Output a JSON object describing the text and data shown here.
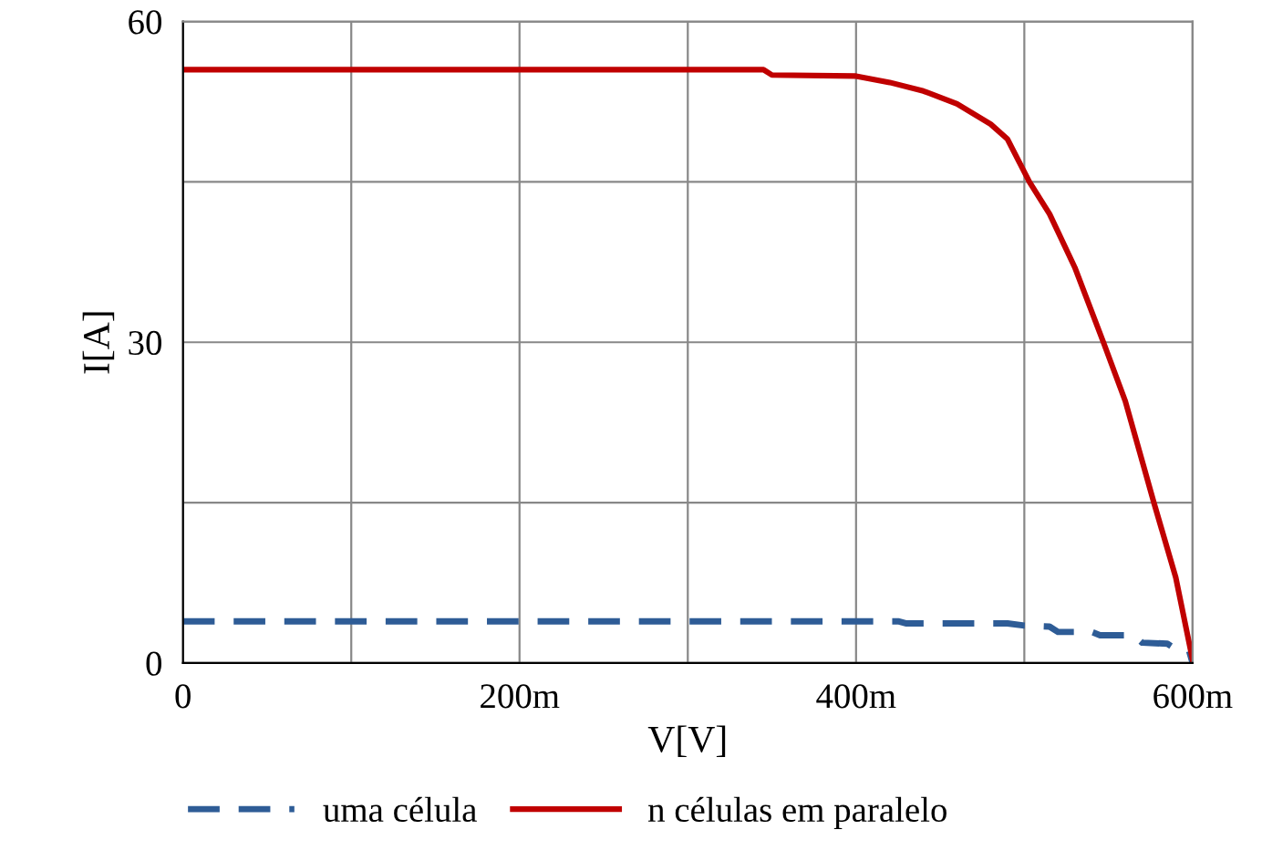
{
  "chart_data": {
    "type": "line",
    "xlabel": "V[V]",
    "ylabel": "I[A]",
    "xlim": [
      0,
      600
    ],
    "ylim": [
      0,
      60
    ],
    "xticks": [
      0,
      {
        "value": 100,
        "label": null
      },
      {
        "value": 200,
        "label": "200m"
      },
      {
        "value": 300,
        "label": null
      },
      {
        "value": 400,
        "label": "400m"
      },
      {
        "value": 500,
        "label": null
      },
      {
        "value": 600,
        "label": "600m"
      }
    ],
    "yticks": [
      0,
      {
        "value": 15,
        "label": null
      },
      30,
      {
        "value": 45,
        "label": null
      },
      60
    ],
    "grid": true,
    "legend": "bottom",
    "series": [
      {
        "name": "uma célula",
        "color": "#2e5c96",
        "line_style": "dashed",
        "x": [
          0,
          425,
          430,
          490,
          500,
          515,
          520,
          540,
          545,
          565,
          570,
          585,
          590,
          598,
          600
        ],
        "values": [
          3.9,
          3.9,
          3.7,
          3.7,
          3.5,
          3.4,
          2.9,
          2.9,
          2.6,
          2.6,
          1.9,
          1.8,
          1.3,
          1.1,
          0
        ]
      },
      {
        "name": "n células em paralelo",
        "color": "#c00000",
        "line_style": "solid",
        "x": [
          0,
          345,
          350,
          400,
          420,
          440,
          460,
          480,
          490,
          503,
          515,
          530,
          547,
          560,
          577,
          590,
          600
        ],
        "values": [
          55.5,
          55.5,
          55.0,
          54.9,
          54.3,
          53.5,
          52.3,
          50.4,
          49.0,
          45.0,
          42.0,
          37.0,
          30.0,
          24.5,
          15.0,
          8.0,
          0.3
        ]
      }
    ]
  }
}
